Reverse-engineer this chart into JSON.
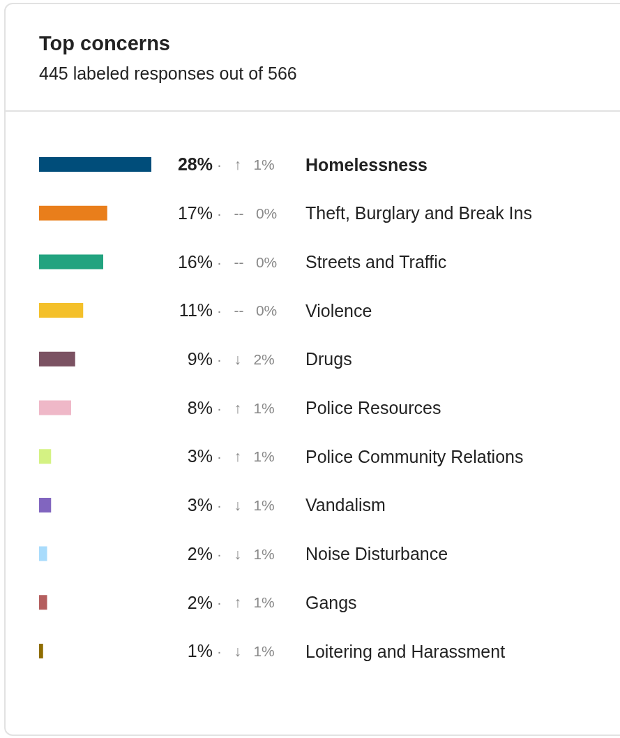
{
  "chart_data": {
    "type": "bar",
    "orientation": "horizontal",
    "title": "Top concerns",
    "subtitle": "445 labeled responses out of 566",
    "categories": [
      "Homelessness",
      "Theft, Burglary and Break Ins",
      "Streets and Traffic",
      "Violence",
      "Drugs",
      "Police Resources",
      "Police Community Relations",
      "Vandalism",
      "Noise Disturbance",
      "Gangs",
      "Loitering and Harassment"
    ],
    "values": [
      28,
      17,
      16,
      11,
      9,
      8,
      3,
      3,
      2,
      2,
      1
    ],
    "value_labels": [
      "28%",
      "17%",
      "16%",
      "11%",
      "9%",
      "8%",
      "3%",
      "3%",
      "2%",
      "2%",
      "1%"
    ],
    "colors": [
      "#004d7a",
      "#e97e1b",
      "#22a37f",
      "#f4c02a",
      "#7b5262",
      "#efb8c8",
      "#d4f283",
      "#8165bf",
      "#a9dcfc",
      "#b45e5e",
      "#8f6d00"
    ],
    "annotations": [
      "· ↑ 1%",
      "· -- 0%",
      "· -- 0%",
      "· -- 0%",
      "· ↓ 2%",
      "· ↑ 1%",
      "· ↑ 1%",
      "· ↓ 1%",
      "· ↓ 1%",
      "· ↑ 1%",
      "· ↓ 1%"
    ]
  }
}
